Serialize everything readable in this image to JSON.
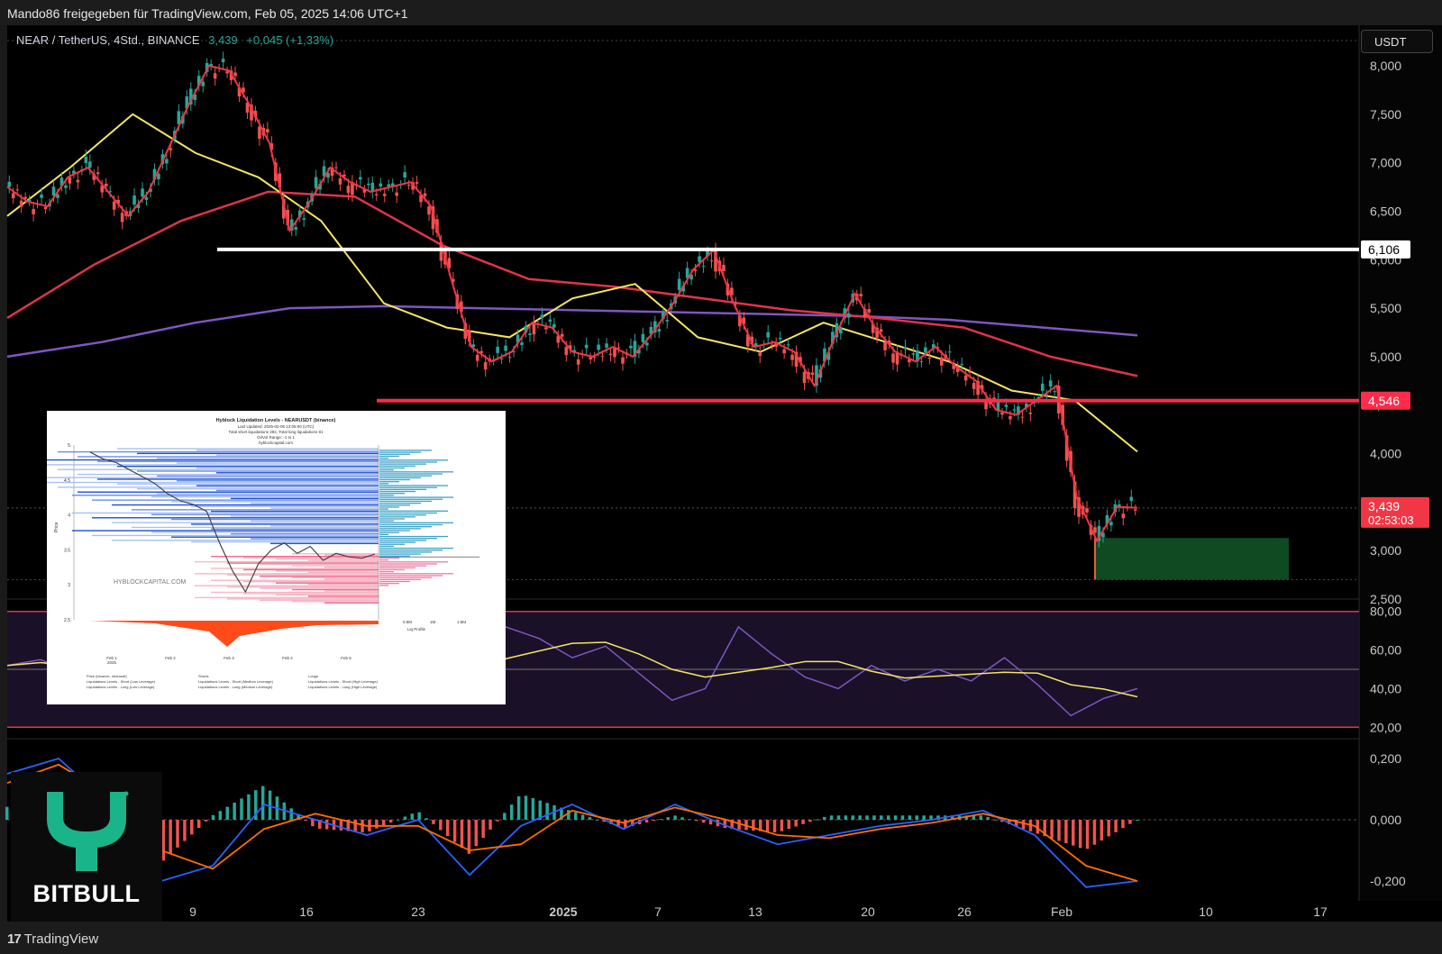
{
  "header": {
    "shared_text": "Mando86 freigegeben für TradingView.com, Feb 05, 2025 14:06 UTC+1"
  },
  "symbol": {
    "name": "NEAR / TetherUS, 4Std., BINANCE",
    "price": "3,439",
    "change": "+0,045 (+1,33%)"
  },
  "currency_button": "USDT",
  "footer": {
    "brand": "TradingView"
  },
  "watermark": {
    "brand": "BITBULL",
    "inset_watermark": "HYBLOCKCAPITAL.COM"
  },
  "colors": {
    "up": "#26a69a",
    "down": "#ef5350",
    "ema_fast": "#f23645",
    "ema_mid": "#f5e663",
    "ema_slow": "#e0344a",
    "ema_long": "#7e57c2",
    "support_line": "#ff2b4a",
    "resistance_line": "#ffffff",
    "zone": "#0f4a22",
    "rsi_band": "#1a1028",
    "macd": "#2962ff",
    "signal": "#ff6d00"
  },
  "chart_data": {
    "type": "line",
    "price_axis": {
      "ticks": [
        "8,000",
        "7,500",
        "7,000",
        "6,500",
        "6,000",
        "5,500",
        "5,000",
        "4,500",
        "4,000",
        "3,500",
        "3,000",
        "2,500"
      ],
      "ylim": [
        2500,
        8200
      ]
    },
    "time_axis": {
      "ticks": [
        "9",
        "16",
        "23",
        "2025",
        "7",
        "13",
        "20",
        "26",
        "Feb",
        "10",
        "17"
      ]
    },
    "close_series": {
      "name": "NEAR/USDT",
      "values": [
        6.75,
        6.6,
        6.55,
        6.85,
        6.95,
        6.7,
        6.45,
        6.7,
        7.15,
        7.6,
        8.0,
        7.95,
        7.6,
        7.2,
        6.3,
        6.6,
        6.95,
        6.8,
        6.7,
        6.75,
        6.8,
        6.55,
        5.8,
        5.1,
        4.95,
        5.05,
        5.35,
        5.3,
        5.05,
        5.0,
        5.1,
        5.0,
        5.25,
        5.55,
        5.9,
        6.1,
        5.55,
        5.1,
        5.15,
        5.05,
        4.7,
        5.2,
        5.65,
        5.3,
        5.05,
        4.95,
        5.1,
        4.9,
        4.75,
        4.45,
        4.4,
        4.55,
        4.7,
        3.55,
        3.1,
        3.45,
        3.44
      ]
    },
    "ema_long_series": {
      "values": [
        5.0,
        5.15,
        5.35,
        5.5,
        5.52,
        5.5,
        5.48,
        5.46,
        5.44,
        5.42,
        5.38,
        5.3,
        5.22
      ]
    },
    "ema_slow_series": {
      "values": [
        5.4,
        5.95,
        6.4,
        6.7,
        6.65,
        6.15,
        5.8,
        5.72,
        5.6,
        5.48,
        5.4,
        5.3,
        5.0,
        4.8
      ]
    },
    "ema_mid_series": {
      "values": [
        6.45,
        6.95,
        7.5,
        7.1,
        6.85,
        6.4,
        5.55,
        5.3,
        5.2,
        5.6,
        5.75,
        5.2,
        5.05,
        5.35,
        5.15,
        4.95,
        4.65,
        4.55,
        4.02
      ]
    },
    "levels": [
      {
        "label": "6,106",
        "value": 6106,
        "color": "resistance_line"
      },
      {
        "label": "4,546",
        "value": 4546,
        "color": "support_line"
      }
    ],
    "current": {
      "price": "3,439",
      "countdown": "02:53:03"
    },
    "rsi": {
      "ticks": [
        "80,00",
        "60,00",
        "40,00",
        "20,00"
      ],
      "upper": 70,
      "lower": 30,
      "values": [
        52,
        55,
        48,
        62,
        60,
        45,
        40,
        34,
        38,
        46,
        58,
        66,
        50,
        40,
        60,
        72,
        66,
        56,
        62,
        48,
        34,
        40,
        72,
        58,
        46,
        40,
        52,
        44,
        50,
        44,
        56,
        42,
        26,
        35,
        40
      ]
    },
    "macd": {
      "ticks": [
        "0,200",
        "0,000",
        "-0,200"
      ],
      "macd_values": [
        0.15,
        0.2,
        0.05,
        -0.2,
        -0.15,
        0.05,
        0.0,
        -0.05,
        0.0,
        -0.18,
        -0.02,
        0.05,
        -0.03,
        0.05,
        -0.02,
        -0.08,
        -0.05,
        -0.02,
        0.0,
        0.03,
        -0.05,
        -0.22,
        -0.2
      ],
      "signal_values": [
        0.12,
        0.18,
        0.08,
        -0.1,
        -0.16,
        -0.03,
        0.02,
        -0.02,
        -0.02,
        -0.1,
        -0.08,
        0.03,
        -0.01,
        0.04,
        0.0,
        -0.05,
        -0.06,
        -0.03,
        -0.01,
        0.02,
        -0.02,
        -0.15,
        -0.2
      ]
    },
    "inset": {
      "type": "line",
      "title": "Hyblock Liquidation Levels - NEARUSDT (binance)",
      "title_lines": [
        "Last Updated: 2025-02-05 13:05:00 (UTC)",
        "Total short liquidations 492, Total long liquidations 81",
        "OI/Vol Range: -1 to 1",
        "hyblockcapital.com"
      ],
      "y_ticks": [
        "5",
        "4.5",
        "4",
        "3.5",
        "3",
        "2.5"
      ],
      "x_ticks": [
        "Feb 1\n2025",
        "Feb 2",
        "Feb 3",
        "Feb 4",
        "Feb 5"
      ],
      "liq_profile_ticks": [
        "0.5M",
        "1M",
        "1.5M"
      ],
      "ylabel": "Price",
      "xlabel_right": "Liq Profile",
      "legend": [
        "Price (binance, nearusdt)",
        "Shorts",
        "Longs",
        "Liquidations Levels - Short (Low Leverage)",
        "Liquidations Levels - Short (Medium Leverage)",
        "Liquidations Levels - Short (High Leverage)",
        "Liquidations Levels - Long (Low Leverage)",
        "Liquidations Levels - Long (Medium Leverage)",
        "Liquidations Levels - Long (High Leverage)"
      ]
    }
  }
}
